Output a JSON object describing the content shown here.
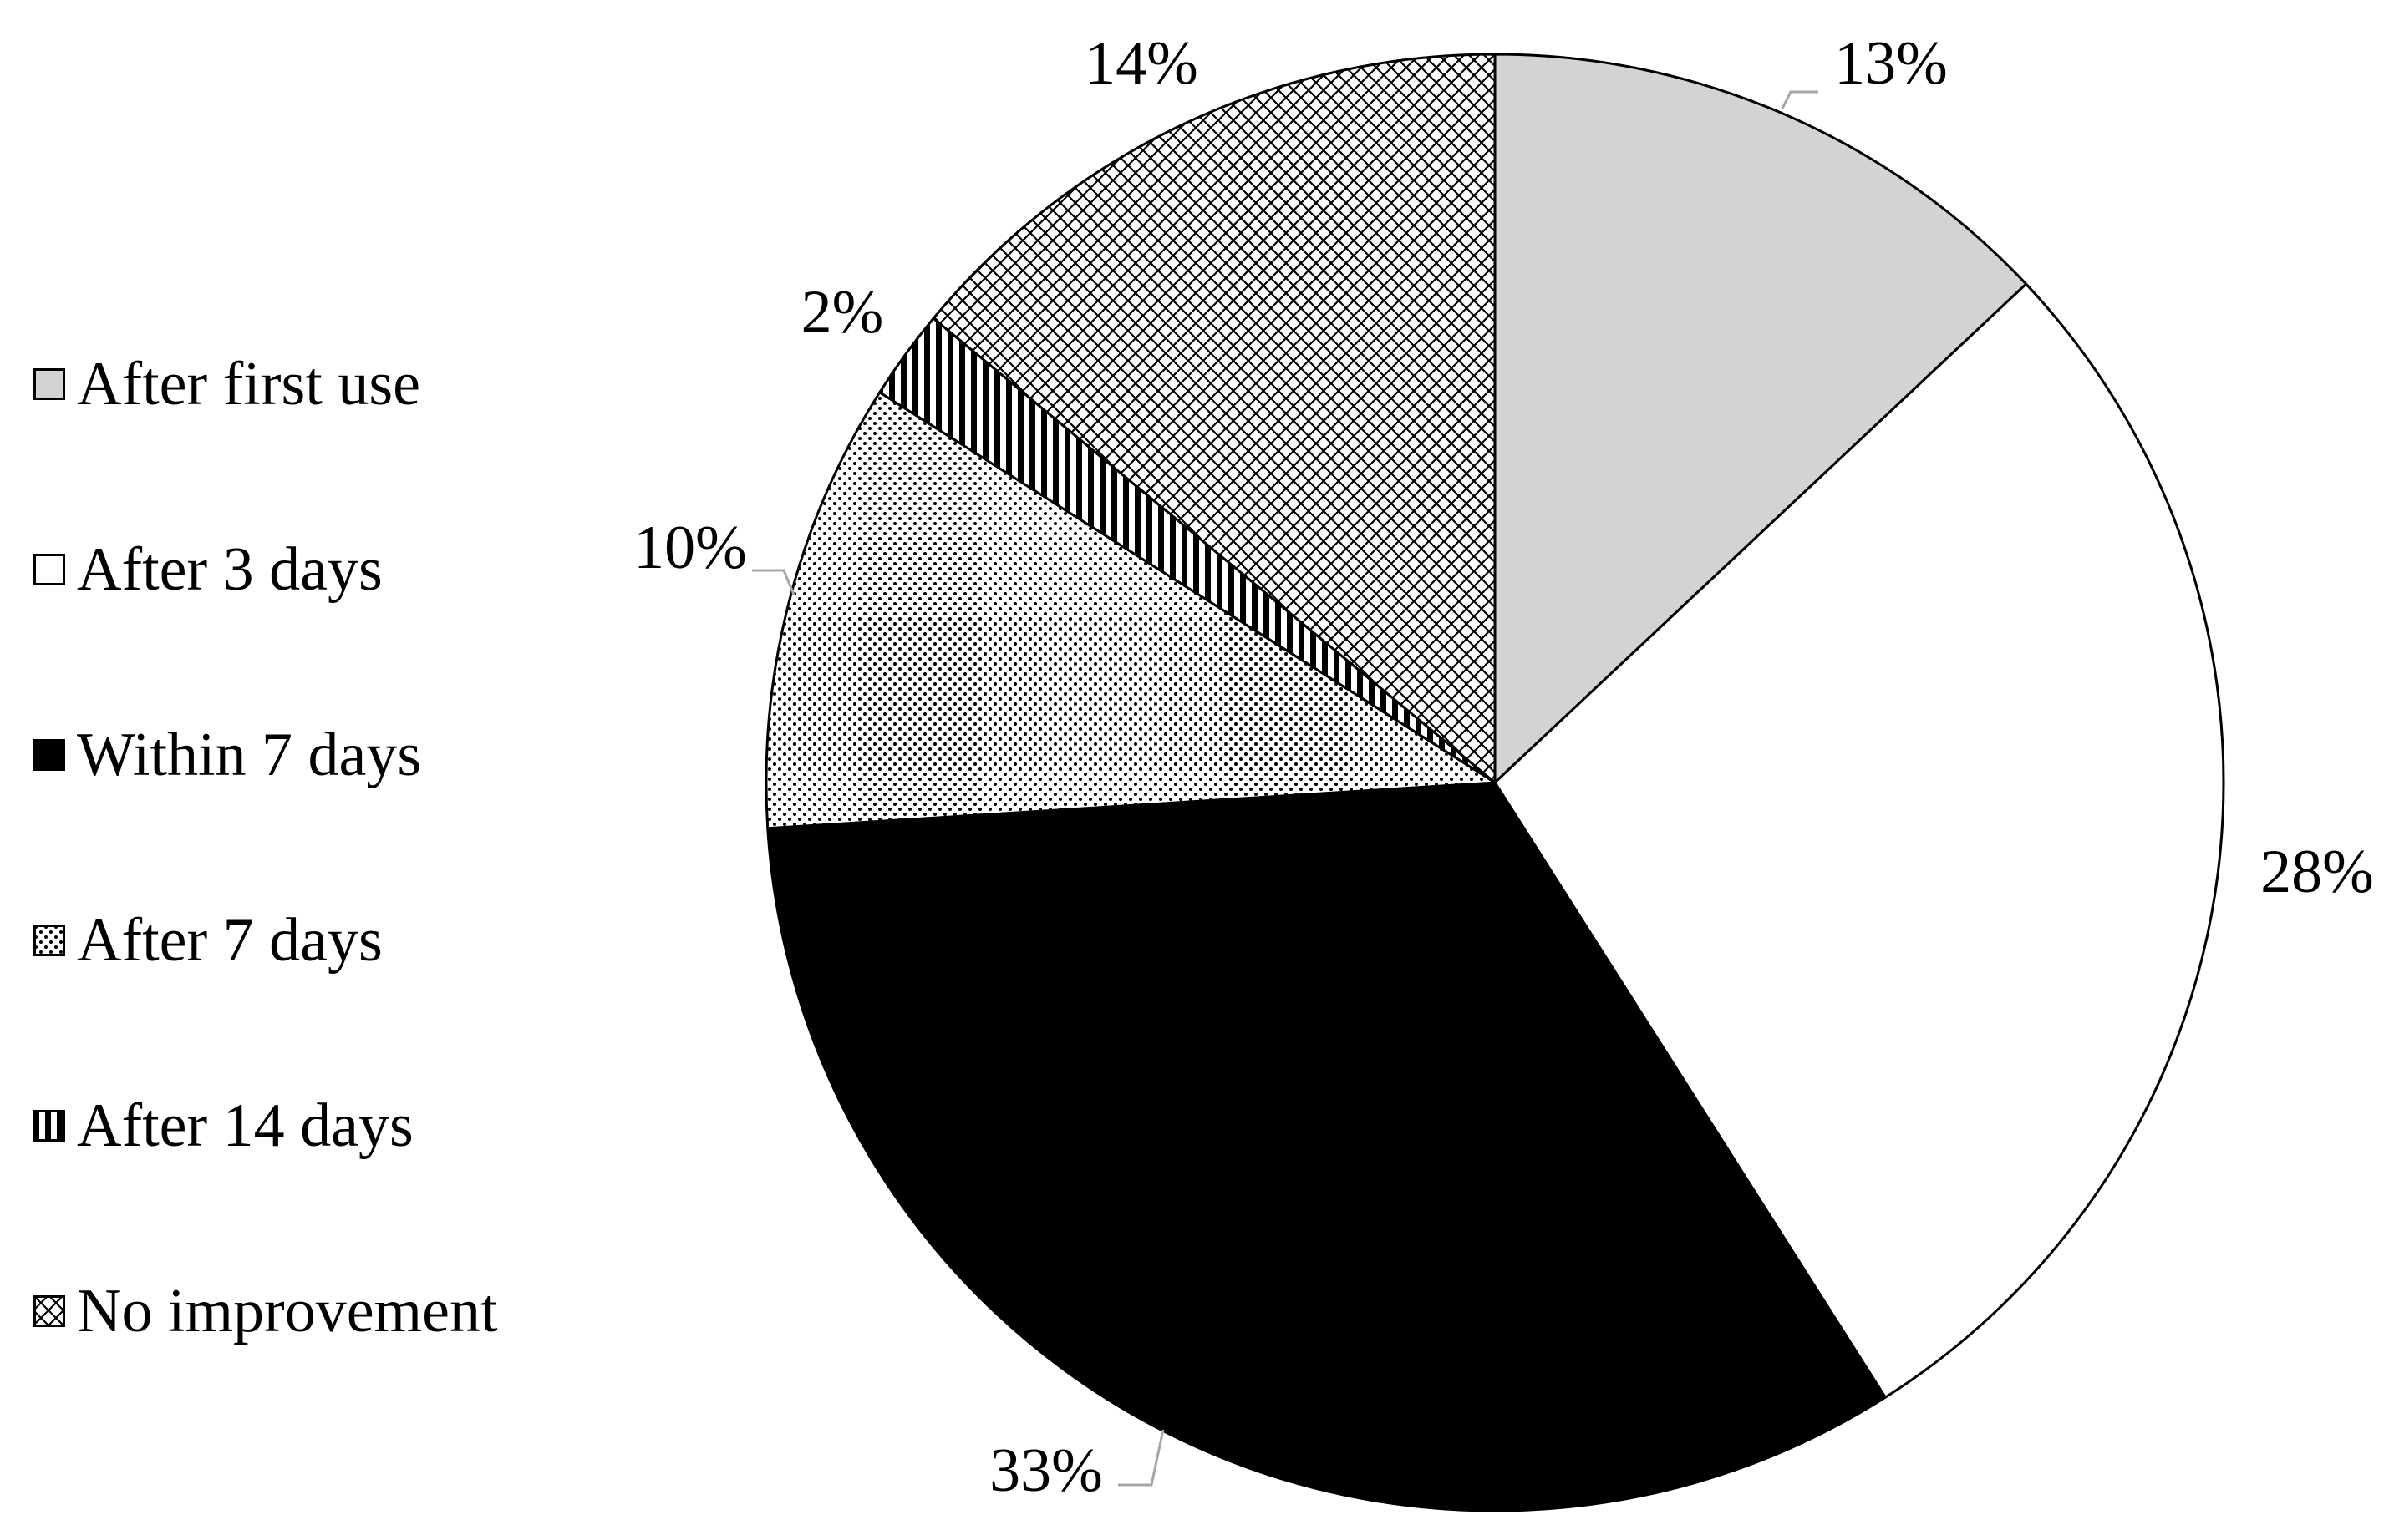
{
  "chart_data": {
    "type": "pie",
    "slices": [
      {
        "label": "After first use",
        "value": 13,
        "display": "13%",
        "fill": "#d4d2d3",
        "pattern": "solid"
      },
      {
        "label": "After 3 days",
        "value": 28,
        "display": "28%",
        "fill": "#ffffff",
        "pattern": "solid"
      },
      {
        "label": "Within 7 days",
        "value": 33,
        "display": "33%",
        "fill": "#000000",
        "pattern": "solid"
      },
      {
        "label": "After 7 days",
        "value": 10,
        "display": "10%",
        "fill": "#ffffff",
        "pattern": "dots"
      },
      {
        "label": "After 14 days",
        "value": 2,
        "display": "2%",
        "fill": "#ffffff",
        "pattern": "vertical-stripes"
      },
      {
        "label": "No improvement",
        "value": 14,
        "display": "14%",
        "fill": "#ffffff",
        "pattern": "crosshatch"
      }
    ],
    "start_angle": "12 o'clock",
    "direction": "clockwise",
    "legend_position": "left",
    "title": ""
  },
  "colors": {
    "outline": "#000000",
    "leader_line": "#a6a6a6",
    "background": "#ffffff"
  }
}
